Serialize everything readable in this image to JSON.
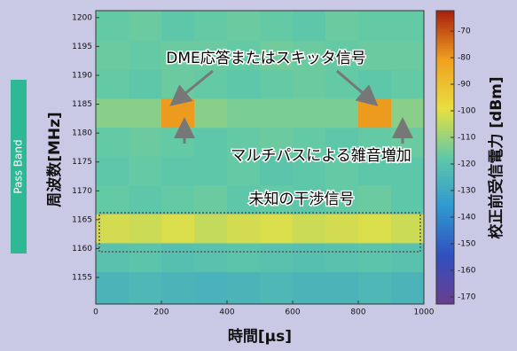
{
  "chart_data": {
    "type": "heatmap",
    "x_bins": [
      0,
      100,
      200,
      300,
      400,
      500,
      600,
      700,
      800,
      900,
      1000
    ],
    "y_bins": [
      1150.5,
      1156,
      1161,
      1166,
      1171,
      1176,
      1181,
      1186,
      1191,
      1196,
      1201.2
    ],
    "values": [
      [
        -125,
        -124,
        -125,
        -126,
        -125,
        -124,
        -125,
        -125,
        -124,
        -125
      ],
      [
        -120,
        -119,
        -121,
        -120,
        -119,
        -120,
        -121,
        -120,
        -119,
        -120
      ],
      [
        -102,
        -103,
        -101,
        -104,
        -102,
        -101,
        -103,
        -102,
        -101,
        -103
      ],
      [
        -117,
        -118,
        -117,
        -116,
        -118,
        -117,
        -118,
        -117,
        -116,
        -118
      ],
      [
        -118,
        -117,
        -118,
        -118,
        -117,
        -119,
        -118,
        -117,
        -118,
        -118
      ],
      [
        -117,
        -116,
        -117,
        -118,
        -117,
        -116,
        -117,
        -118,
        -117,
        -116
      ],
      [
        -112,
        -112,
        -80,
        -112,
        -114,
        -114,
        -114,
        -114,
        -80,
        -112
      ],
      [
        -117,
        -118,
        -116,
        -117,
        -118,
        -117,
        -116,
        -117,
        -118,
        -117
      ],
      [
        -116,
        -117,
        -116,
        -116,
        -117,
        -115,
        -116,
        -117,
        -116,
        -116
      ],
      [
        -117,
        -116,
        -118,
        -117,
        -116,
        -117,
        -118,
        -116,
        -117,
        -117
      ]
    ],
    "xlim": [
      0,
      1000
    ],
    "xticks": [
      0,
      200,
      400,
      600,
      800,
      1000
    ],
    "ylim": [
      1150.4,
      1201.2
    ],
    "yticks": [
      1155,
      1160,
      1165,
      1170,
      1175,
      1180,
      1185,
      1190,
      1195,
      1200
    ],
    "clim": [
      -172.7,
      -62.3
    ],
    "cticks": [
      -70,
      -80,
      -90,
      -100,
      -110,
      -120,
      -130,
      -140,
      -150,
      -160,
      -170
    ],
    "colormap": [
      "#6a3d8f",
      "#3050c0",
      "#3098d0",
      "#60c8a8",
      "#e8e040",
      "#f0a020",
      "#a82010"
    ],
    "xlabel": "時間[μs]",
    "ylabel": "周波数[MHz]",
    "clabel": "校正前受信電力 [dBm]",
    "side_label": "Pass Band",
    "annotations": [
      "DME応答またはスキッタ信号",
      "マルチパスによる雑音増加",
      "未知の干渉信号"
    ]
  }
}
